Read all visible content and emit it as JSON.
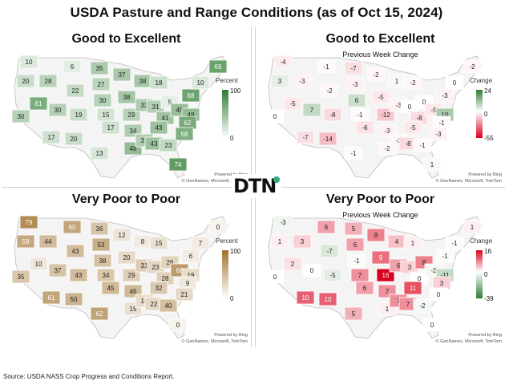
{
  "title": "USDA Pasture and Range Conditions (as of Oct 15, 2024)",
  "source": "Source:  USDA NASS Crop Progress and Conditions Report.",
  "logo_text": "DTN",
  "attribution": [
    "Powered by Bing",
    "© GeoNames, Microsoft, TomTom"
  ],
  "panels": [
    {
      "title": "Good to Excellent",
      "subtitle": "",
      "legend": {
        "title": "Percent",
        "max": "100",
        "mid": "",
        "min": "0",
        "colors": [
          "#2f7d32",
          "#ffffff"
        ]
      },
      "labels": [
        {
          "state": "WA",
          "v": "10"
        },
        {
          "state": "OR",
          "v": "20"
        },
        {
          "state": "ID",
          "v": "28"
        },
        {
          "state": "MT",
          "v": "6"
        },
        {
          "state": "WY",
          "v": "22"
        },
        {
          "state": "ND",
          "v": "35"
        },
        {
          "state": "SD",
          "v": "27"
        },
        {
          "state": "NE",
          "v": "30"
        },
        {
          "state": "MN",
          "v": "37"
        },
        {
          "state": "IA",
          "v": "38"
        },
        {
          "state": "WI",
          "v": "38"
        },
        {
          "state": "MI",
          "v": "18"
        },
        {
          "state": "CA",
          "v": "30"
        },
        {
          "state": "NV",
          "v": "61"
        },
        {
          "state": "UT",
          "v": "30"
        },
        {
          "state": "CO",
          "v": "19"
        },
        {
          "state": "KS",
          "v": "15"
        },
        {
          "state": "MO",
          "v": "29"
        },
        {
          "state": "IL",
          "v": "33"
        },
        {
          "state": "IN",
          "v": "31"
        },
        {
          "state": "OH",
          "v": "5"
        },
        {
          "state": "PA",
          "v": "68"
        },
        {
          "state": "NY",
          "v": "10"
        },
        {
          "state": "ME",
          "v": "69"
        },
        {
          "state": "AZ",
          "v": "17"
        },
        {
          "state": "NM",
          "v": "20"
        },
        {
          "state": "OK",
          "v": "17"
        },
        {
          "state": "AR",
          "v": "34"
        },
        {
          "state": "KY",
          "v": "41"
        },
        {
          "state": "TN",
          "v": "43"
        },
        {
          "state": "WV",
          "v": "45"
        },
        {
          "state": "VA",
          "v": "48"
        },
        {
          "state": "NC",
          "v": "62"
        },
        {
          "state": "TX",
          "v": "13"
        },
        {
          "state": "LA",
          "v": "48"
        },
        {
          "state": "MS",
          "v": "32"
        },
        {
          "state": "AL",
          "v": "43"
        },
        {
          "state": "GA",
          "v": "23"
        },
        {
          "state": "SC",
          "v": "58"
        },
        {
          "state": "FL",
          "v": "74"
        }
      ]
    },
    {
      "title": "Good to Excellent",
      "subtitle": "Previous Week Change",
      "legend": {
        "title": "Change",
        "max": "24",
        "mid": "0",
        "min": "-55",
        "colors": [
          "#2f7d32",
          "#ffffff",
          "#d9001b"
        ]
      },
      "labels": [
        {
          "state": "WA",
          "v": "-4"
        },
        {
          "state": "OR",
          "v": "3"
        },
        {
          "state": "ID",
          "v": "-3"
        },
        {
          "state": "MT",
          "v": "-1"
        },
        {
          "state": "WY",
          "v": "-2"
        },
        {
          "state": "ND",
          "v": "-7"
        },
        {
          "state": "SD",
          "v": "-3"
        },
        {
          "state": "NE",
          "v": "6"
        },
        {
          "state": "MN",
          "v": "-2"
        },
        {
          "state": "IA",
          "v": "-5"
        },
        {
          "state": "WI",
          "v": "1"
        },
        {
          "state": "MI",
          "v": "-2"
        },
        {
          "state": "CA",
          "v": "0"
        },
        {
          "state": "NV",
          "v": "-5"
        },
        {
          "state": "UT",
          "v": "7"
        },
        {
          "state": "CO",
          "v": "-8"
        },
        {
          "state": "KS",
          "v": "-1"
        },
        {
          "state": "MO",
          "v": "-12"
        },
        {
          "state": "IL",
          "v": "-3"
        },
        {
          "state": "IN",
          "v": "0"
        },
        {
          "state": "OH",
          "v": "0"
        },
        {
          "state": "PA",
          "v": "-3"
        },
        {
          "state": "NY",
          "v": "0"
        },
        {
          "state": "ME",
          "v": "-2"
        },
        {
          "state": "AZ",
          "v": "-7"
        },
        {
          "state": "NM",
          "v": "-14"
        },
        {
          "state": "OK",
          "v": "-6"
        },
        {
          "state": "AR",
          "v": "-3"
        },
        {
          "state": "KY",
          "v": "-8"
        },
        {
          "state": "TN",
          "v": "-5"
        },
        {
          "state": "WV",
          "v": "-5"
        },
        {
          "state": "VA",
          "v": "10"
        },
        {
          "state": "NC",
          "v": "-1"
        },
        {
          "state": "TX",
          "v": "-1"
        },
        {
          "state": "LA",
          "v": "-2"
        },
        {
          "state": "MS",
          "v": "-2"
        },
        {
          "state": "AL",
          "v": "-8"
        },
        {
          "state": "GA",
          "v": "-1"
        },
        {
          "state": "SC",
          "v": "-3"
        },
        {
          "state": "FL",
          "v": "1"
        }
      ]
    },
    {
      "title": "Very Poor to Poor",
      "subtitle": "",
      "legend": {
        "title": "Percent",
        "max": "100",
        "mid": "",
        "min": "0",
        "colors": [
          "#a0722e",
          "#ffffff"
        ]
      },
      "labels": [
        {
          "state": "WA",
          "v": "79"
        },
        {
          "state": "OR",
          "v": "59"
        },
        {
          "state": "ID",
          "v": "44"
        },
        {
          "state": "MT",
          "v": "60"
        },
        {
          "state": "WY",
          "v": "43"
        },
        {
          "state": "ND",
          "v": "36"
        },
        {
          "state": "SD",
          "v": "53"
        },
        {
          "state": "NE",
          "v": "38"
        },
        {
          "state": "MN",
          "v": "12"
        },
        {
          "state": "IA",
          "v": "20"
        },
        {
          "state": "WI",
          "v": "8"
        },
        {
          "state": "MI",
          "v": "15"
        },
        {
          "state": "CA",
          "v": "35"
        },
        {
          "state": "NV",
          "v": "10"
        },
        {
          "state": "UT",
          "v": "37"
        },
        {
          "state": "CO",
          "v": "43"
        },
        {
          "state": "KS",
          "v": "34"
        },
        {
          "state": "MO",
          "v": "29"
        },
        {
          "state": "IL",
          "v": "31"
        },
        {
          "state": "IN",
          "v": "23"
        },
        {
          "state": "OH",
          "v": "26"
        },
        {
          "state": "PA",
          "v": "6"
        },
        {
          "state": "NY",
          "v": "7"
        },
        {
          "state": "ME",
          "v": "0"
        },
        {
          "state": "AZ",
          "v": "61"
        },
        {
          "state": "NM",
          "v": "50"
        },
        {
          "state": "OK",
          "v": "45"
        },
        {
          "state": "AR",
          "v": "46"
        },
        {
          "state": "KY",
          "v": "28"
        },
        {
          "state": "TN",
          "v": "32"
        },
        {
          "state": "WV",
          "v": "68"
        },
        {
          "state": "VA",
          "v": "19"
        },
        {
          "state": "NC",
          "v": "9"
        },
        {
          "state": "TX",
          "v": "62"
        },
        {
          "state": "LA",
          "v": "15"
        },
        {
          "state": "MS",
          "v": "18"
        },
        {
          "state": "AL",
          "v": "22"
        },
        {
          "state": "GA",
          "v": "40"
        },
        {
          "state": "SC",
          "v": "21"
        },
        {
          "state": "FL",
          "v": "0"
        }
      ]
    },
    {
      "title": "Very Poor to Poor",
      "subtitle": "Previous Week Change",
      "legend": {
        "title": "Change",
        "max": "16",
        "mid": "0",
        "min": "-39",
        "colors": [
          "#d9001b",
          "#ffffff",
          "#2f7d32"
        ]
      },
      "labels": [
        {
          "state": "WA",
          "v": "-3"
        },
        {
          "state": "OR",
          "v": "1"
        },
        {
          "state": "ID",
          "v": "3"
        },
        {
          "state": "MT",
          "v": "6"
        },
        {
          "state": "WY",
          "v": "-7"
        },
        {
          "state": "ND",
          "v": "5"
        },
        {
          "state": "SD",
          "v": "6"
        },
        {
          "state": "NE",
          "v": "-1"
        },
        {
          "state": "MN",
          "v": "8"
        },
        {
          "state": "IA",
          "v": "9"
        },
        {
          "state": "WI",
          "v": "4"
        },
        {
          "state": "MI",
          "v": "1"
        },
        {
          "state": "CA",
          "v": "0"
        },
        {
          "state": "NV",
          "v": "2"
        },
        {
          "state": "UT",
          "v": "0"
        },
        {
          "state": "CO",
          "v": "-5"
        },
        {
          "state": "KS",
          "v": "7"
        },
        {
          "state": "MO",
          "v": "16"
        },
        {
          "state": "IL",
          "v": "6"
        },
        {
          "state": "IN",
          "v": "3"
        },
        {
          "state": "OH",
          "v": "8"
        },
        {
          "state": "PA",
          "v": "-1"
        },
        {
          "state": "NY",
          "v": "-1"
        },
        {
          "state": "ME",
          "v": "1"
        },
        {
          "state": "AZ",
          "v": "10"
        },
        {
          "state": "NM",
          "v": "10"
        },
        {
          "state": "OK",
          "v": "6"
        },
        {
          "state": "AR",
          "v": "7"
        },
        {
          "state": "KY",
          "v": "0"
        },
        {
          "state": "TN",
          "v": "11"
        },
        {
          "state": "WV",
          "v": "-2"
        },
        {
          "state": "VA",
          "v": "-11"
        },
        {
          "state": "NC",
          "v": "3"
        },
        {
          "state": "TX",
          "v": "5"
        },
        {
          "state": "LA",
          "v": "1"
        },
        {
          "state": "MS",
          "v": "7"
        },
        {
          "state": "AL",
          "v": "7"
        },
        {
          "state": "GA",
          "v": "-2"
        },
        {
          "state": "SC",
          "v": "0"
        },
        {
          "state": "FL",
          "v": "0"
        }
      ]
    }
  ]
}
